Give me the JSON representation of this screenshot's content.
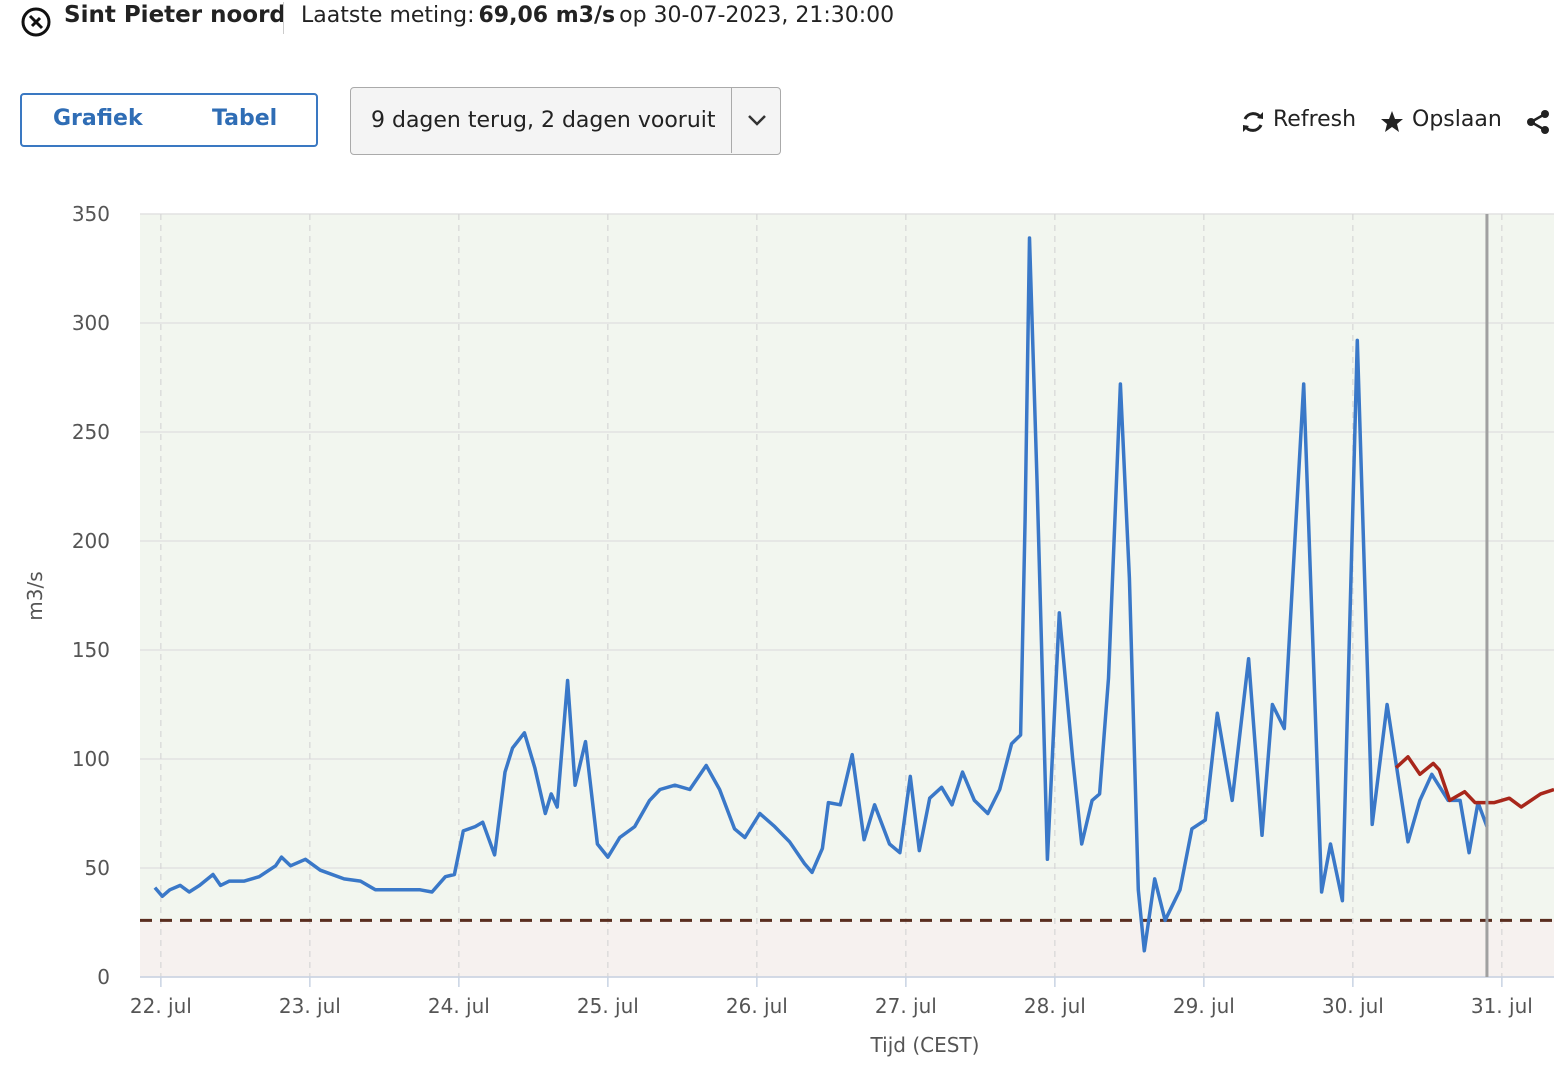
{
  "header": {
    "station": "Sint Pieter noord",
    "measurement_label": "Laatste meting:",
    "measurement_value": "69,06 m3/s",
    "measurement_time": "op 30-07-2023, 21:30:00"
  },
  "tabs": [
    "Grafiek",
    "Tabel"
  ],
  "period": "9 dagen terug, 2 dagen vooruit",
  "actions": [
    "Refresh",
    "Opslaan"
  ],
  "chart_data": {
    "type": "line",
    "ylabel": "m3/s",
    "xlabel": "Tijd (CEST)",
    "xlim": [
      21.86,
      31.35
    ],
    "ylim": [
      0,
      350
    ],
    "yticks": [
      0,
      50,
      100,
      150,
      200,
      250,
      300,
      350
    ],
    "xticks": [
      {
        "value": 22,
        "label": "22. jul"
      },
      {
        "value": 23,
        "label": "23. jul"
      },
      {
        "value": 24,
        "label": "24. jul"
      },
      {
        "value": 25,
        "label": "25. jul"
      },
      {
        "value": 26,
        "label": "26. jul"
      },
      {
        "value": 27,
        "label": "27. jul"
      },
      {
        "value": 28,
        "label": "28. jul"
      },
      {
        "value": 29,
        "label": "29. jul"
      },
      {
        "value": 30,
        "label": "30. jul"
      },
      {
        "value": 31,
        "label": "31. jul"
      }
    ],
    "grid": true,
    "threshold": 26,
    "now": 30.9,
    "series": [
      {
        "color": "#3a78c8",
        "x": [
          21.96,
          22.01,
          22.06,
          22.13,
          22.19,
          22.26,
          22.35,
          22.4,
          22.46,
          22.56,
          22.66,
          22.77,
          22.81,
          22.87,
          22.97,
          23.07,
          23.23,
          23.34,
          23.44,
          23.54,
          23.64,
          23.74,
          23.82,
          23.91,
          23.97,
          24.03,
          24.11,
          24.16,
          24.24,
          24.31,
          24.36,
          24.44,
          24.51,
          24.58,
          24.62,
          24.66,
          24.73,
          24.78,
          24.85,
          24.93,
          25.0,
          25.08,
          25.18,
          25.28,
          25.35,
          25.45,
          25.55,
          25.66,
          25.75,
          25.85,
          25.92,
          26.02,
          26.12,
          26.22,
          26.32,
          26.37,
          26.44,
          26.48,
          26.56,
          26.64,
          26.72,
          26.79,
          26.89,
          26.96,
          27.03,
          27.09,
          27.16,
          27.24,
          27.31,
          27.38,
          27.46,
          27.55,
          27.63,
          27.71,
          27.77,
          27.8,
          27.83,
          27.88,
          27.95,
          28.03,
          28.12,
          28.18,
          28.25,
          28.3,
          28.36,
          28.44,
          28.5,
          28.56,
          28.6,
          28.67,
          28.74,
          28.84,
          28.92,
          29.01,
          29.09,
          29.19,
          29.3,
          29.39,
          29.46,
          29.54,
          29.67,
          29.79,
          29.85,
          29.93,
          30.03,
          30.13,
          30.23,
          30.37,
          30.45,
          30.53,
          30.64,
          30.72,
          30.78,
          30.84,
          30.9
        ],
        "values": [
          41,
          37,
          40,
          42,
          39,
          42,
          47,
          42,
          44,
          44,
          46,
          51,
          55,
          51,
          54,
          49,
          45,
          44,
          40,
          40,
          40,
          40,
          39,
          46,
          47,
          67,
          69,
          71,
          56,
          94,
          105,
          112,
          96,
          75,
          84,
          78,
          136,
          88,
          108,
          61,
          55,
          64,
          69,
          81,
          86,
          88,
          86,
          97,
          86,
          68,
          64,
          75,
          69,
          62,
          52,
          48,
          59,
          80,
          79,
          102,
          63,
          79,
          61,
          57,
          92,
          58,
          82,
          87,
          79,
          94,
          81,
          75,
          86,
          107,
          111,
          210,
          339,
          228,
          54,
          167,
          100,
          61,
          81,
          84,
          137,
          272,
          183,
          40,
          12,
          45,
          26,
          40,
          68,
          72,
          121,
          81,
          146,
          65,
          125,
          114,
          272,
          39,
          61,
          35,
          292,
          70,
          125,
          62,
          81,
          93,
          81,
          81,
          57,
          80,
          69
        ]
      },
      {
        "color": "#a8271b",
        "x": [
          30.29,
          30.37,
          30.45,
          30.54,
          30.58,
          30.65,
          30.75,
          30.82,
          30.95,
          31.05,
          31.13,
          31.26,
          31.35
        ],
        "values": [
          96,
          101,
          93,
          98,
          95,
          81,
          85,
          80,
          80,
          82,
          78,
          84,
          86
        ]
      }
    ]
  }
}
